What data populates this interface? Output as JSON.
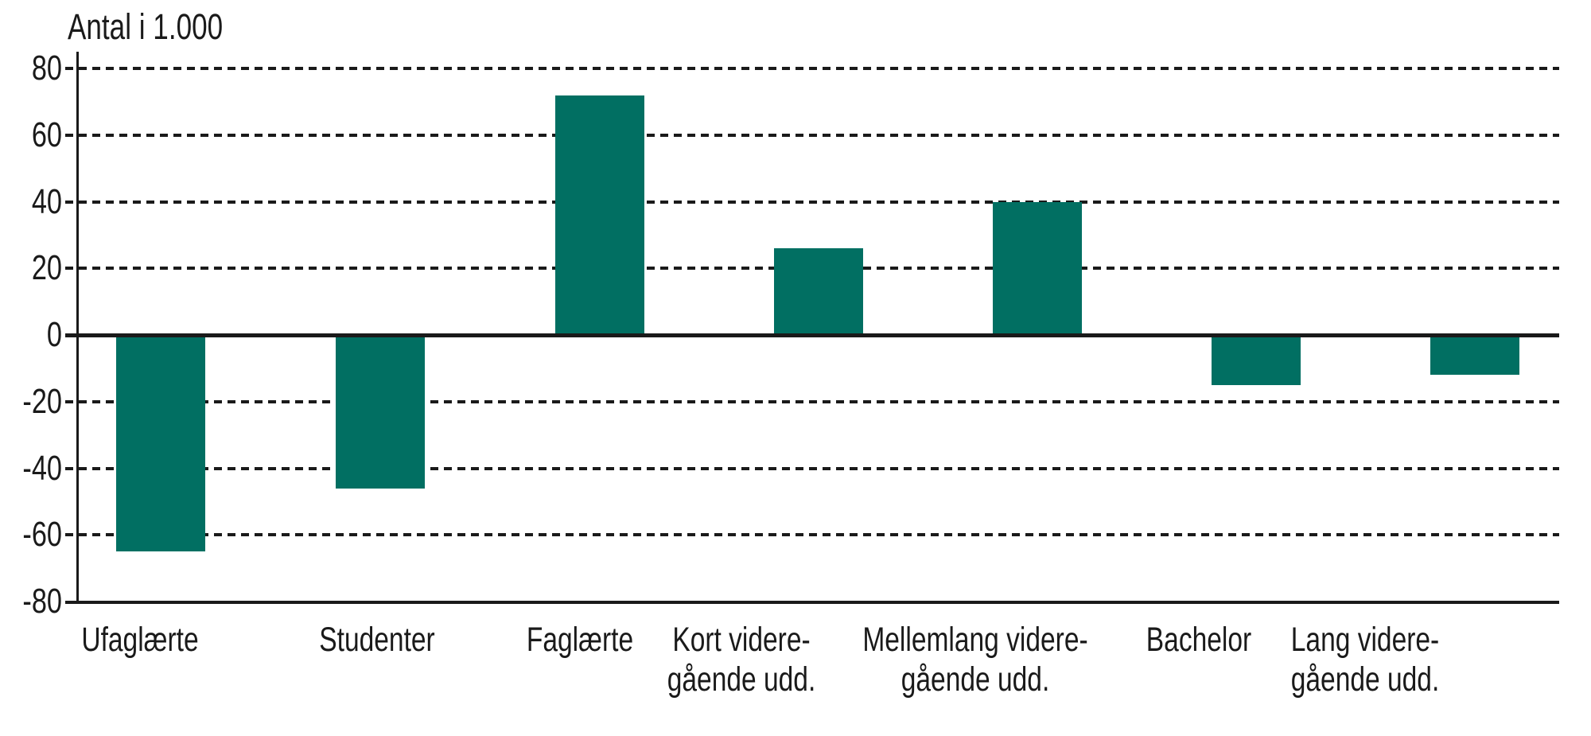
{
  "chart_data": {
    "type": "bar",
    "title": "Antal i 1.000",
    "categories": [
      "Ufaglærte",
      "Studenter",
      "Faglærte",
      "Kort videre-\ngående udd.",
      "Mellemlang videre-\ngående udd.",
      "Bachelor",
      "Lang videre-\ngående udd."
    ],
    "values": [
      -65,
      -46,
      72,
      26,
      40,
      -15,
      -12
    ],
    "xlabel": "",
    "ylabel": "Antal i 1.000",
    "ylim": [
      -80,
      80
    ],
    "yticks": [
      80,
      60,
      40,
      20,
      0,
      -20,
      -40,
      -60,
      -80
    ],
    "grid": "horizontal-dotted",
    "zero_line": "solid",
    "legend_position": "none",
    "bar_color": "#016F62",
    "text_color": "#1a1a1a"
  }
}
